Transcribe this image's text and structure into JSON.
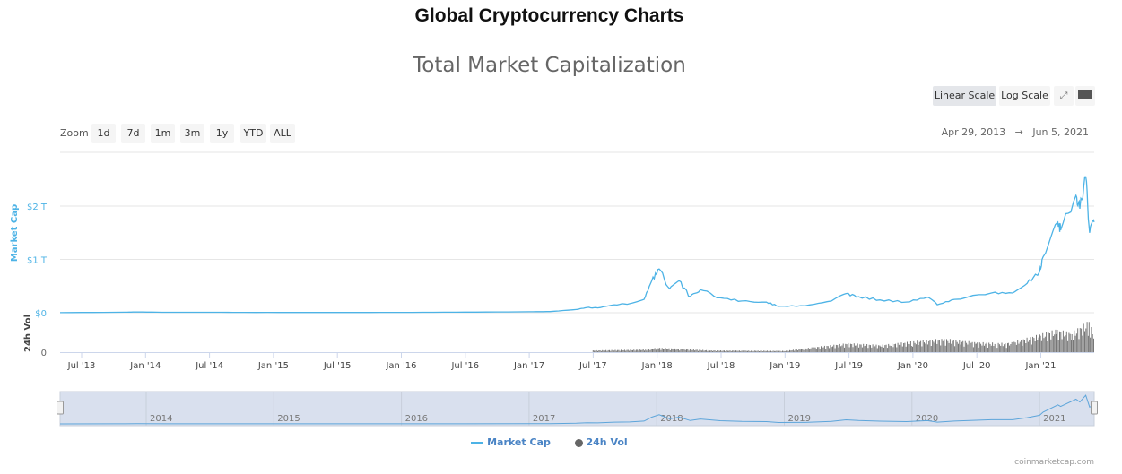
{
  "page": {
    "title": "Global Cryptocurrency Charts",
    "credit": "coinmarketcap.com"
  },
  "toolbar": {
    "linear": "Linear Scale",
    "log": "Log Scale",
    "selected_scale": "linear",
    "fullscreen_icon": "expand-icon",
    "menu_icon": "hamburger-icon"
  },
  "zoom": {
    "label": "Zoom",
    "buttons": [
      "1d",
      "7d",
      "1m",
      "3m",
      "1y",
      "YTD",
      "ALL"
    ]
  },
  "range": {
    "from": "Apr 29, 2013",
    "arrow": "→",
    "to": "Jun 5, 2021"
  },
  "chart_data": {
    "type": "line",
    "title": "Total Market Capitalization",
    "xlabel": "",
    "x_ticks": [
      "Jul '13",
      "Jan '14",
      "Jul '14",
      "Jan '15",
      "Jul '15",
      "Jan '16",
      "Jul '16",
      "Jan '17",
      "Jul '17",
      "Jan '18",
      "Jul '18",
      "Jan '19",
      "Jul '19",
      "Jan '20",
      "Jul '20",
      "Jan '21"
    ],
    "navigator_ticks": [
      "2014",
      "2015",
      "2016",
      "2017",
      "2018",
      "2019",
      "2020",
      "2021"
    ],
    "xlim": [
      "2013-04-29",
      "2021-06-05"
    ],
    "market_cap": {
      "name": "Market Cap",
      "ylabel": "Market Cap",
      "unit": "USD trillions",
      "y_ticks": [
        "$0",
        "$1 T",
        "$2 T"
      ],
      "ylim": [
        0,
        2.7
      ],
      "color": "#4db3e6",
      "x": [
        "2013-04-29",
        "2013-11-01",
        "2013-12-05",
        "2014-03-01",
        "2014-07-01",
        "2015-01-15",
        "2015-07-01",
        "2016-01-01",
        "2016-07-01",
        "2017-01-01",
        "2017-03-01",
        "2017-05-15",
        "2017-06-15",
        "2017-07-15",
        "2017-09-01",
        "2017-10-15",
        "2017-11-25",
        "2017-12-17",
        "2018-01-07",
        "2018-02-06",
        "2018-03-05",
        "2018-04-06",
        "2018-05-05",
        "2018-07-01",
        "2018-09-01",
        "2018-11-10",
        "2018-12-15",
        "2019-03-01",
        "2019-05-15",
        "2019-06-26",
        "2019-08-01",
        "2019-10-01",
        "2019-12-15",
        "2020-02-14",
        "2020-03-13",
        "2020-05-01",
        "2020-08-15",
        "2020-10-15",
        "2020-11-25",
        "2020-12-31",
        "2021-01-10",
        "2021-02-21",
        "2021-03-01",
        "2021-04-14",
        "2021-04-25",
        "2021-05-12",
        "2021-05-23",
        "2021-06-05"
      ],
      "y": [
        0.0015,
        0.01,
        0.014,
        0.008,
        0.009,
        0.005,
        0.005,
        0.007,
        0.011,
        0.018,
        0.022,
        0.06,
        0.1,
        0.09,
        0.15,
        0.17,
        0.25,
        0.6,
        0.82,
        0.45,
        0.6,
        0.3,
        0.43,
        0.28,
        0.22,
        0.2,
        0.12,
        0.13,
        0.22,
        0.36,
        0.3,
        0.24,
        0.2,
        0.29,
        0.15,
        0.25,
        0.37,
        0.37,
        0.55,
        0.77,
        1.05,
        1.7,
        1.55,
        2.2,
        1.95,
        2.55,
        1.5,
        1.7
      ]
    },
    "volume": {
      "name": "24h Vol",
      "ylabel": "24h Vol",
      "unit": "USD billions",
      "y_ticks": [
        "0"
      ],
      "color": "#777777",
      "x": [
        "2017-07-01",
        "2017-12-01",
        "2018-01-01",
        "2018-06-01",
        "2019-01-01",
        "2019-04-01",
        "2019-07-01",
        "2019-10-01",
        "2020-01-01",
        "2020-04-01",
        "2020-07-01",
        "2020-10-01",
        "2021-01-01",
        "2021-02-15",
        "2021-04-01",
        "2021-05-20",
        "2021-06-05"
      ],
      "y": [
        20,
        30,
        50,
        20,
        15,
        60,
        100,
        80,
        120,
        150,
        110,
        100,
        200,
        250,
        220,
        350,
        180
      ]
    }
  }
}
